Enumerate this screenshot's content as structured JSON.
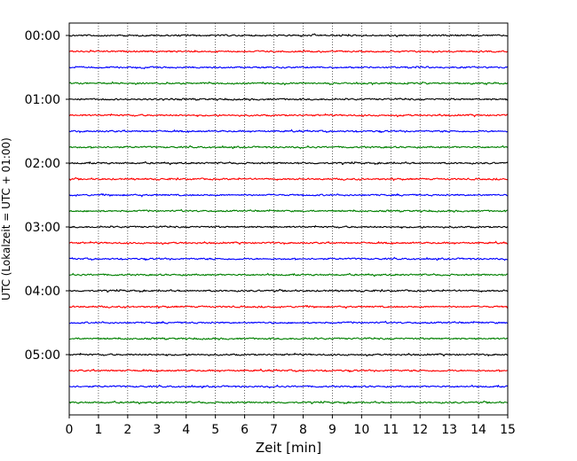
{
  "chart_data": {
    "type": "line",
    "title": "",
    "xlabel": "Zeit  [min]",
    "ylabel": "UTC (Lokalzeit = UTC + 01:00)",
    "xlim": [
      0,
      15
    ],
    "x_ticks": [
      "0",
      "1",
      "2",
      "3",
      "4",
      "5",
      "6",
      "7",
      "8",
      "9",
      "10",
      "11",
      "12",
      "13",
      "14",
      "15"
    ],
    "y_ticks": [
      "00:00",
      "01:00",
      "02:00",
      "03:00",
      "04:00",
      "05:00"
    ],
    "grid": "vertical dotted at each minute",
    "trace_interval_minutes": 15,
    "trace_count": 24,
    "trace_colors": [
      "#000000",
      "#ff0000",
      "#0000ff",
      "#008000"
    ],
    "series": [
      {
        "start": "00:00"
      },
      {
        "start": "00:15"
      },
      {
        "start": "00:30"
      },
      {
        "start": "00:45"
      },
      {
        "start": "01:00"
      },
      {
        "start": "01:15"
      },
      {
        "start": "01:30"
      },
      {
        "start": "01:45"
      },
      {
        "start": "02:00"
      },
      {
        "start": "02:15"
      },
      {
        "start": "02:30"
      },
      {
        "start": "02:45"
      },
      {
        "start": "03:00"
      },
      {
        "start": "03:15"
      },
      {
        "start": "03:30"
      },
      {
        "start": "03:45"
      },
      {
        "start": "04:00"
      },
      {
        "start": "04:15"
      },
      {
        "start": "04:30"
      },
      {
        "start": "04:45"
      },
      {
        "start": "05:00"
      },
      {
        "start": "05:15"
      },
      {
        "start": "05:30"
      },
      {
        "start": "05:45"
      }
    ]
  }
}
